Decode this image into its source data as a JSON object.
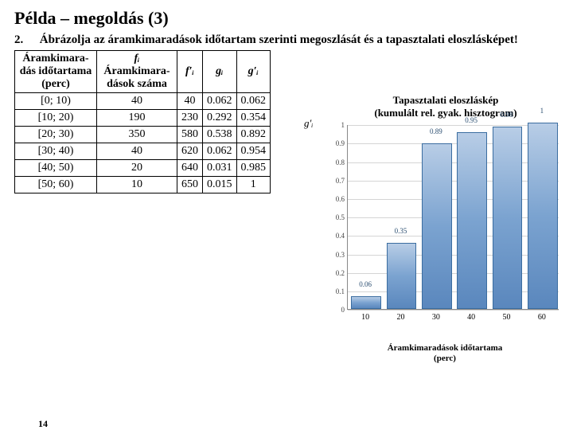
{
  "title": "Példa – megoldás (3)",
  "task": {
    "num": "2.",
    "text": "Ábrázolja az áramkimaradások időtartam szerinti megoszlását és a tapasztalati eloszlásképet!"
  },
  "table": {
    "headers": {
      "c1": "Áramkimara-\ndás időtartama\n(perc)",
      "c2": "Áramkimara-\ndások száma",
      "c3": "f′ᵢ",
      "c4": "gᵢ",
      "c5": "g′ᵢ"
    },
    "rows": [
      {
        "c1": "[0; 10)",
        "c2": "40",
        "c3": "40",
        "c4": "0.062",
        "c5": "0.062"
      },
      {
        "c1": "[10; 20)",
        "c2": "190",
        "c3": "230",
        "c4": "0.292",
        "c5": "0.354"
      },
      {
        "c1": "[20; 30)",
        "c2": "350",
        "c3": "580",
        "c4": "0.538",
        "c5": "0.892"
      },
      {
        "c1": "[30; 40)",
        "c2": "40",
        "c3": "620",
        "c4": "0.062",
        "c5": "0.954"
      },
      {
        "c1": "[40; 50)",
        "c2": "20",
        "c3": "640",
        "c4": "0.031",
        "c5": "0.985"
      },
      {
        "c1": "[50; 60)",
        "c2": "10",
        "c3": "650",
        "c4": "0.015",
        "c5": "1"
      }
    ],
    "fi_symbol": "fᵢ"
  },
  "chart": {
    "title1": "Tapasztalati eloszláskép",
    "title2": "(kumulált rel. gyak. hisztogram)",
    "ylabel": "g′ᵢ",
    "xlabel1": "Áramkimaradások időtartama",
    "xlabel2": "(perc)",
    "type": "bar",
    "ylim": [
      0,
      1
    ],
    "yticks": [
      0,
      0.1,
      0.2,
      0.3,
      0.4,
      0.5,
      0.6,
      0.7,
      0.8,
      0.9,
      1
    ],
    "xticks": [
      10,
      20,
      30,
      40,
      50,
      60
    ],
    "bars": [
      {
        "x": 10,
        "v": 0.06,
        "label": "0.06"
      },
      {
        "x": 20,
        "v": 0.35,
        "label": "0.35"
      },
      {
        "x": 30,
        "v": 0.89,
        "label": "0.89"
      },
      {
        "x": 40,
        "v": 0.95,
        "label": "0.95"
      },
      {
        "x": 50,
        "v": 0.98,
        "label": "0.98"
      },
      {
        "x": 60,
        "v": 1.0,
        "label": "1"
      }
    ],
    "bar_color": "#7ba3d0",
    "bar_border": "#3b6da0",
    "grid_color": "#d5d5d5",
    "x_range": [
      5,
      65
    ]
  },
  "page": "14"
}
